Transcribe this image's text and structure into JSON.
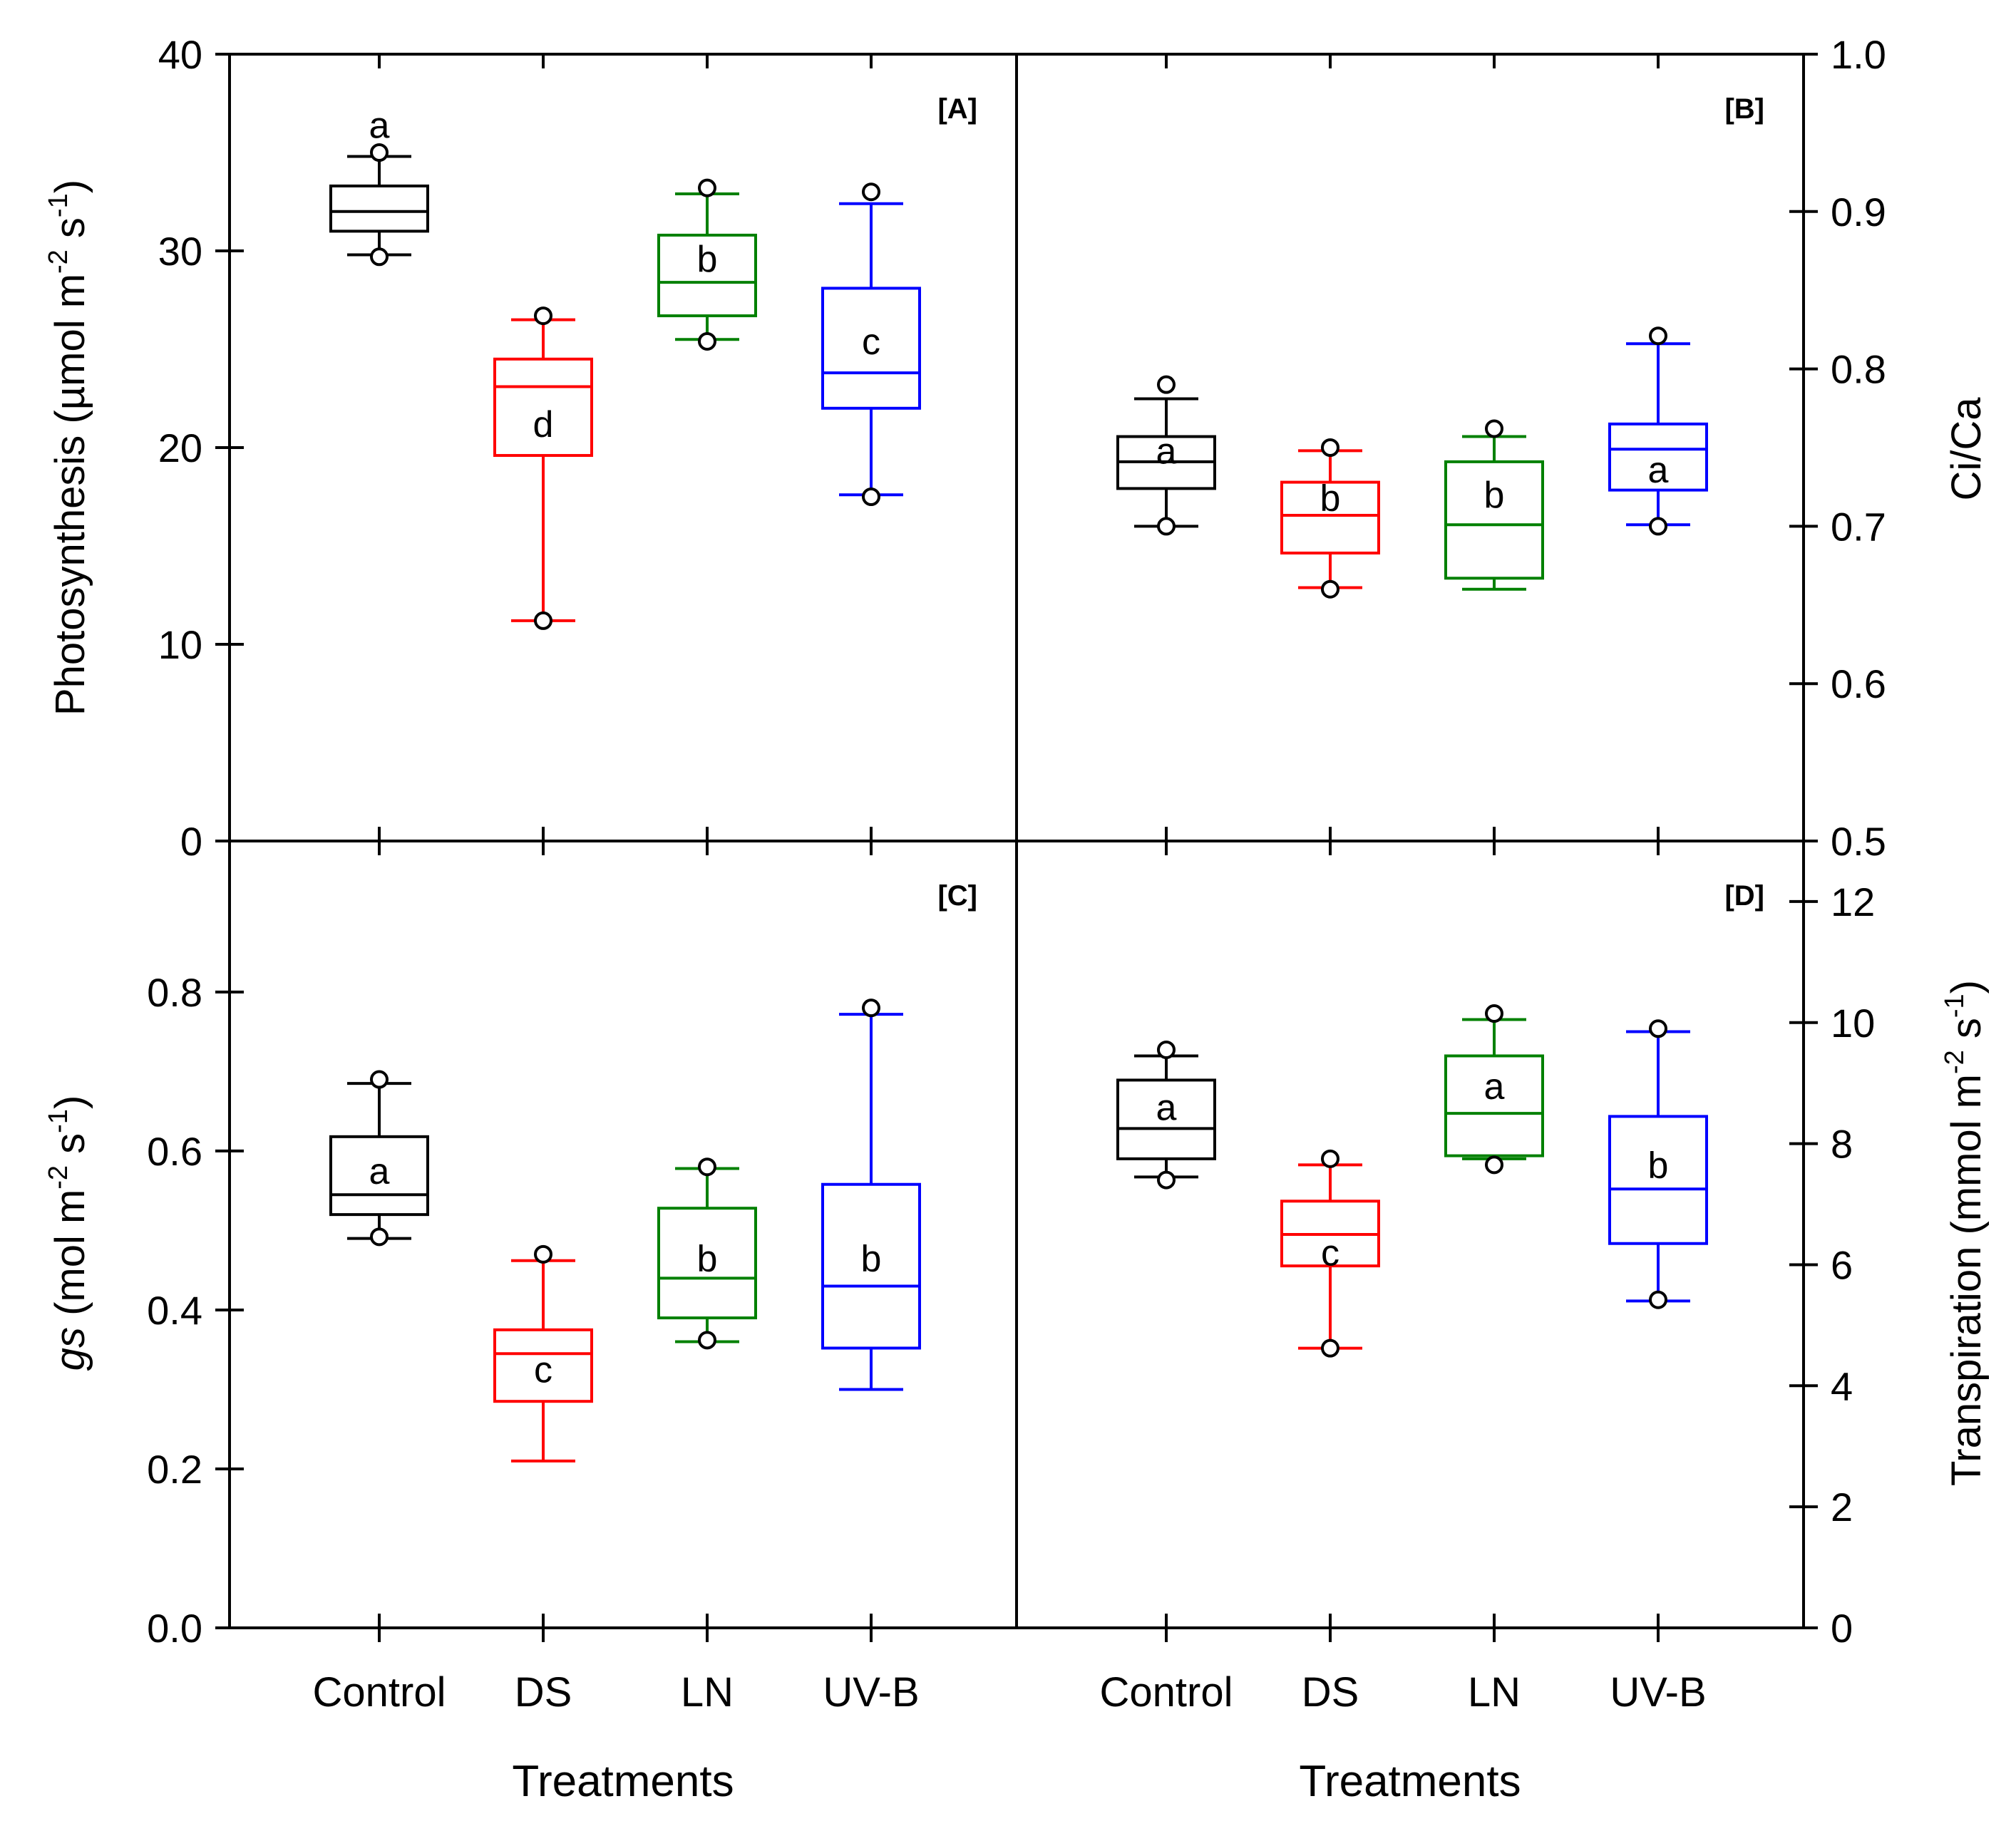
{
  "colors": {
    "Control": "#000000",
    "DS": "#ff0000",
    "LN": "#008000",
    "UV-B": "#0000ff",
    "axis": "#000000"
  },
  "x_label": "Treatments",
  "chart_data": [
    {
      "panel": "[A]",
      "type": "box",
      "categories": [
        "Control",
        "DS",
        "LN",
        "UV-B"
      ],
      "ylabel": "Photosynthesis (µmol m-2 s-1)",
      "ylim": [
        0,
        40
      ],
      "yticks": [
        0,
        10,
        20,
        30,
        40
      ],
      "ytick_labels": [
        "0",
        "10",
        "20",
        "30",
        "40"
      ],
      "yaxis_side": "left",
      "boxes": [
        {
          "category": "Control",
          "whisker_low": 29.8,
          "q1": 31.0,
          "median": 32.0,
          "q3": 33.3,
          "whisker_high": 34.8,
          "outliers": [
            29.7,
            35.0
          ],
          "letter": "a",
          "letter_y": 36.4
        },
        {
          "category": "DS",
          "whisker_low": 11.2,
          "q1": 19.6,
          "median": 23.1,
          "q3": 24.5,
          "whisker_high": 26.5,
          "outliers": [
            11.2,
            26.7
          ],
          "letter": "d",
          "letter_y": 21.2
        },
        {
          "category": "LN",
          "whisker_low": 25.5,
          "q1": 26.7,
          "median": 28.4,
          "q3": 30.8,
          "whisker_high": 32.9,
          "outliers": [
            25.4,
            33.2
          ],
          "letter": "b",
          "letter_y": 29.6
        },
        {
          "category": "UV-B",
          "whisker_low": 17.6,
          "q1": 22.0,
          "median": 23.8,
          "q3": 28.1,
          "whisker_high": 32.4,
          "outliers": [
            17.5,
            33.0
          ],
          "letter": "c",
          "letter_y": 25.4
        }
      ]
    },
    {
      "panel": "[B]",
      "type": "box",
      "categories": [
        "Control",
        "DS",
        "LN",
        "UV-B"
      ],
      "ylabel": "Ci/Ca",
      "ylim": [
        0.5,
        1.0
      ],
      "yticks": [
        0.5,
        0.6,
        0.7,
        0.8,
        0.9,
        1.0
      ],
      "ytick_labels": [
        "0.5",
        "0.6",
        "0.7",
        "0.8",
        "0.9",
        "1.0"
      ],
      "yaxis_side": "right",
      "boxes": [
        {
          "category": "Control",
          "whisker_low": 0.7,
          "q1": 0.724,
          "median": 0.741,
          "q3": 0.757,
          "whisker_high": 0.781,
          "outliers": [
            0.7,
            0.79
          ],
          "letter": "a",
          "letter_y": 0.748
        },
        {
          "category": "DS",
          "whisker_low": 0.661,
          "q1": 0.683,
          "median": 0.707,
          "q3": 0.728,
          "whisker_high": 0.748,
          "outliers": [
            0.66,
            0.75
          ],
          "letter": "b",
          "letter_y": 0.718
        },
        {
          "category": "LN",
          "whisker_low": 0.66,
          "q1": 0.667,
          "median": 0.701,
          "q3": 0.741,
          "whisker_high": 0.757,
          "outliers": [
            0.762
          ],
          "letter": "b",
          "letter_y": 0.72
        },
        {
          "category": "UV-B",
          "whisker_low": 0.701,
          "q1": 0.723,
          "median": 0.749,
          "q3": 0.765,
          "whisker_high": 0.816,
          "outliers": [
            0.7,
            0.821
          ],
          "letter": "a",
          "letter_y": 0.736
        }
      ]
    },
    {
      "panel": "[C]",
      "type": "box",
      "categories": [
        "Control",
        "DS",
        "LN",
        "UV-B"
      ],
      "ylabel": "gs (mol m-2 s-1)",
      "ylim": [
        0.0,
        0.99
      ],
      "yticks": [
        0.0,
        0.2,
        0.4,
        0.6,
        0.8
      ],
      "ytick_labels": [
        "0.0",
        "0.2",
        "0.4",
        "0.6",
        "0.8"
      ],
      "yaxis_side": "left",
      "boxes": [
        {
          "category": "Control",
          "whisker_low": 0.49,
          "q1": 0.52,
          "median": 0.545,
          "q3": 0.618,
          "whisker_high": 0.685,
          "outliers": [
            0.492,
            0.69
          ],
          "letter": "a",
          "letter_y": 0.575
        },
        {
          "category": "DS",
          "whisker_low": 0.21,
          "q1": 0.285,
          "median": 0.345,
          "q3": 0.375,
          "whisker_high": 0.462,
          "outliers": [
            0.47
          ],
          "letter": "c",
          "letter_y": 0.325
        },
        {
          "category": "LN",
          "whisker_low": 0.36,
          "q1": 0.39,
          "median": 0.44,
          "q3": 0.528,
          "whisker_high": 0.578,
          "outliers": [
            0.362,
            0.58
          ],
          "letter": "b",
          "letter_y": 0.465
        },
        {
          "category": "UV-B",
          "whisker_low": 0.3,
          "q1": 0.352,
          "median": 0.43,
          "q3": 0.558,
          "whisker_high": 0.772,
          "outliers": [
            0.78
          ],
          "letter": "b",
          "letter_y": 0.465
        }
      ]
    },
    {
      "panel": "[D]",
      "type": "box",
      "categories": [
        "Control",
        "DS",
        "LN",
        "UV-B"
      ],
      "ylabel": "Transpiration (mmol m-2 s-1)",
      "ylim": [
        0,
        13
      ],
      "yticks": [
        0,
        2,
        4,
        6,
        8,
        10,
        12
      ],
      "ytick_labels": [
        "0",
        "2",
        "4",
        "6",
        "8",
        "10",
        "12"
      ],
      "yaxis_side": "right",
      "boxes": [
        {
          "category": "Control",
          "whisker_low": 7.45,
          "q1": 7.75,
          "median": 8.25,
          "q3": 9.05,
          "whisker_high": 9.45,
          "outliers": [
            7.4,
            9.55
          ],
          "letter": "a",
          "letter_y": 8.6
        },
        {
          "category": "DS",
          "whisker_low": 4.62,
          "q1": 5.98,
          "median": 6.5,
          "q3": 7.05,
          "whisker_high": 7.65,
          "outliers": [
            4.62,
            7.75
          ],
          "letter": "c",
          "letter_y": 6.2
        },
        {
          "category": "LN",
          "whisker_low": 7.75,
          "q1": 7.8,
          "median": 8.5,
          "q3": 9.45,
          "whisker_high": 10.05,
          "outliers": [
            7.65,
            10.15
          ],
          "letter": "a",
          "letter_y": 8.95
        },
        {
          "category": "UV-B",
          "whisker_low": 5.4,
          "q1": 6.35,
          "median": 7.25,
          "q3": 8.45,
          "whisker_high": 9.85,
          "outliers": [
            5.42,
            9.9
          ],
          "letter": "b",
          "letter_y": 7.65
        }
      ]
    }
  ]
}
